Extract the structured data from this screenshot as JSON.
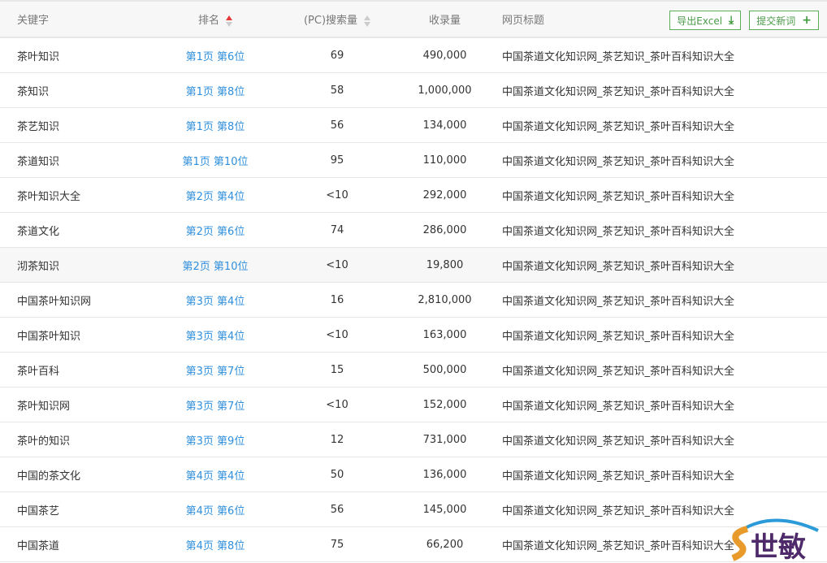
{
  "header": {
    "keyword": "关键字",
    "rank": "排名",
    "search": "(PC)搜索量",
    "indexed": "收录量",
    "title": "网页标题",
    "export_label": "导出Excel",
    "submit_label": "提交新词"
  },
  "colors": {
    "link": "#2f8fdc",
    "accent": "#5aae58",
    "sort_active": "#e8393a"
  },
  "rows": [
    {
      "keyword": "茶叶知识",
      "rank": "第1页 第6位",
      "search": "69",
      "indexed": "490,000",
      "title": "中国茶道文化知识网_茶艺知识_茶叶百科知识大全"
    },
    {
      "keyword": "茶知识",
      "rank": "第1页 第8位",
      "search": "58",
      "indexed": "1,000,000",
      "title": "中国茶道文化知识网_茶艺知识_茶叶百科知识大全"
    },
    {
      "keyword": "茶艺知识",
      "rank": "第1页 第8位",
      "search": "56",
      "indexed": "134,000",
      "title": "中国茶道文化知识网_茶艺知识_茶叶百科知识大全"
    },
    {
      "keyword": "茶道知识",
      "rank": "第1页 第10位",
      "search": "95",
      "indexed": "110,000",
      "title": "中国茶道文化知识网_茶艺知识_茶叶百科知识大全"
    },
    {
      "keyword": "茶叶知识大全",
      "rank": "第2页 第4位",
      "search": "<10",
      "indexed": "292,000",
      "title": "中国茶道文化知识网_茶艺知识_茶叶百科知识大全"
    },
    {
      "keyword": "茶道文化",
      "rank": "第2页 第6位",
      "search": "74",
      "indexed": "286,000",
      "title": "中国茶道文化知识网_茶艺知识_茶叶百科知识大全"
    },
    {
      "keyword": "沏茶知识",
      "rank": "第2页 第10位",
      "search": "<10",
      "indexed": "19,800",
      "title": "中国茶道文化知识网_茶艺知识_茶叶百科知识大全"
    },
    {
      "keyword": "中国茶叶知识网",
      "rank": "第3页 第4位",
      "search": "16",
      "indexed": "2,810,000",
      "title": "中国茶道文化知识网_茶艺知识_茶叶百科知识大全"
    },
    {
      "keyword": "中国茶叶知识",
      "rank": "第3页 第4位",
      "search": "<10",
      "indexed": "163,000",
      "title": "中国茶道文化知识网_茶艺知识_茶叶百科知识大全"
    },
    {
      "keyword": "茶叶百科",
      "rank": "第3页 第7位",
      "search": "15",
      "indexed": "500,000",
      "title": "中国茶道文化知识网_茶艺知识_茶叶百科知识大全"
    },
    {
      "keyword": "茶叶知识网",
      "rank": "第3页 第7位",
      "search": "<10",
      "indexed": "152,000",
      "title": "中国茶道文化知识网_茶艺知识_茶叶百科知识大全"
    },
    {
      "keyword": "茶叶的知识",
      "rank": "第3页 第9位",
      "search": "12",
      "indexed": "731,000",
      "title": "中国茶道文化知识网_茶艺知识_茶叶百科知识大全"
    },
    {
      "keyword": "中国的茶文化",
      "rank": "第4页 第4位",
      "search": "50",
      "indexed": "136,000",
      "title": "中国茶道文化知识网_茶艺知识_茶叶百科知识大全"
    },
    {
      "keyword": "中国茶艺",
      "rank": "第4页 第6位",
      "search": "56",
      "indexed": "145,000",
      "title": "中国茶道文化知识网_茶艺知识_茶叶百科知识大全"
    },
    {
      "keyword": "中国茶道",
      "rank": "第4页 第8位",
      "search": "75",
      "indexed": "66,200",
      "title": "中国茶道文化知识网_茶艺知识_茶叶百科知识大全"
    }
  ],
  "watermark": {
    "text": "世敏"
  }
}
